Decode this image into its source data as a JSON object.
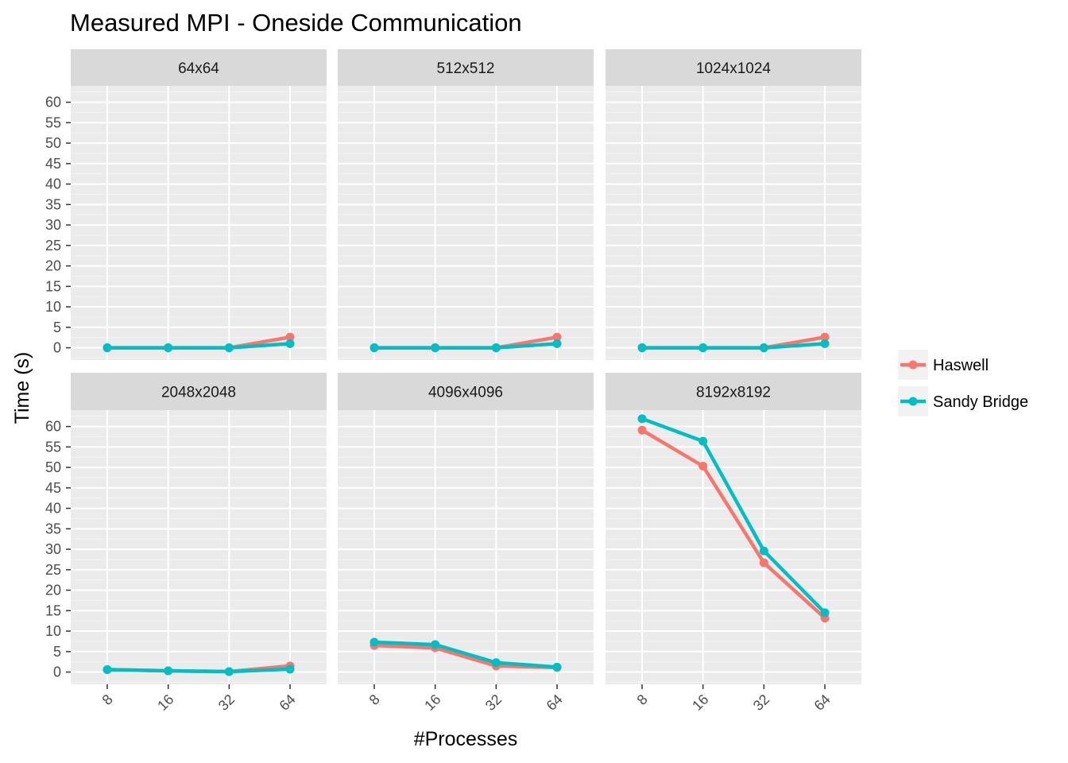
{
  "chart_data": {
    "type": "line",
    "title": "Measured MPI - Oneside Communication",
    "xlabel": "#Processes",
    "ylabel": "Time (s)",
    "x_ticks": [
      "8",
      "16",
      "32",
      "64"
    ],
    "y_ticks": [
      "0",
      "5",
      "10",
      "15",
      "20",
      "25",
      "30",
      "35",
      "40",
      "45",
      "50",
      "55",
      "60"
    ],
    "ylim": [
      -3,
      64
    ],
    "grid": true,
    "legend_position": "right",
    "series_meta": [
      {
        "name": "Haswell",
        "color": "#F8766D"
      },
      {
        "name": "Sandy Bridge",
        "color": "#00BFC4"
      }
    ],
    "panels": [
      {
        "label": "64x64",
        "series": [
          {
            "name": "Haswell",
            "values": [
              0.0,
              0.0,
              0.0,
              2.6
            ]
          },
          {
            "name": "Sandy Bridge",
            "values": [
              0.0,
              0.0,
              0.0,
              1.0
            ]
          }
        ]
      },
      {
        "label": "512x512",
        "series": [
          {
            "name": "Haswell",
            "values": [
              0.0,
              0.0,
              0.0,
              2.6
            ]
          },
          {
            "name": "Sandy Bridge",
            "values": [
              0.0,
              0.0,
              0.0,
              1.0
            ]
          }
        ]
      },
      {
        "label": "1024x1024",
        "series": [
          {
            "name": "Haswell",
            "values": [
              0.0,
              0.0,
              0.0,
              2.6
            ]
          },
          {
            "name": "Sandy Bridge",
            "values": [
              0.0,
              0.0,
              0.0,
              1.0
            ]
          }
        ]
      },
      {
        "label": "2048x2048",
        "series": [
          {
            "name": "Haswell",
            "values": [
              0.6,
              0.3,
              0.1,
              1.5
            ]
          },
          {
            "name": "Sandy Bridge",
            "values": [
              0.6,
              0.3,
              0.1,
              0.7
            ]
          }
        ]
      },
      {
        "label": "4096x4096",
        "series": [
          {
            "name": "Haswell",
            "values": [
              6.5,
              5.9,
              1.5,
              1.1
            ]
          },
          {
            "name": "Sandy Bridge",
            "values": [
              7.3,
              6.7,
              2.3,
              1.2
            ]
          }
        ]
      },
      {
        "label": "8192x8192",
        "series": [
          {
            "name": "Haswell",
            "values": [
              59.1,
              50.3,
              26.7,
              13.2
            ]
          },
          {
            "name": "Sandy Bridge",
            "values": [
              61.9,
              56.4,
              29.6,
              14.5
            ]
          }
        ]
      }
    ]
  }
}
